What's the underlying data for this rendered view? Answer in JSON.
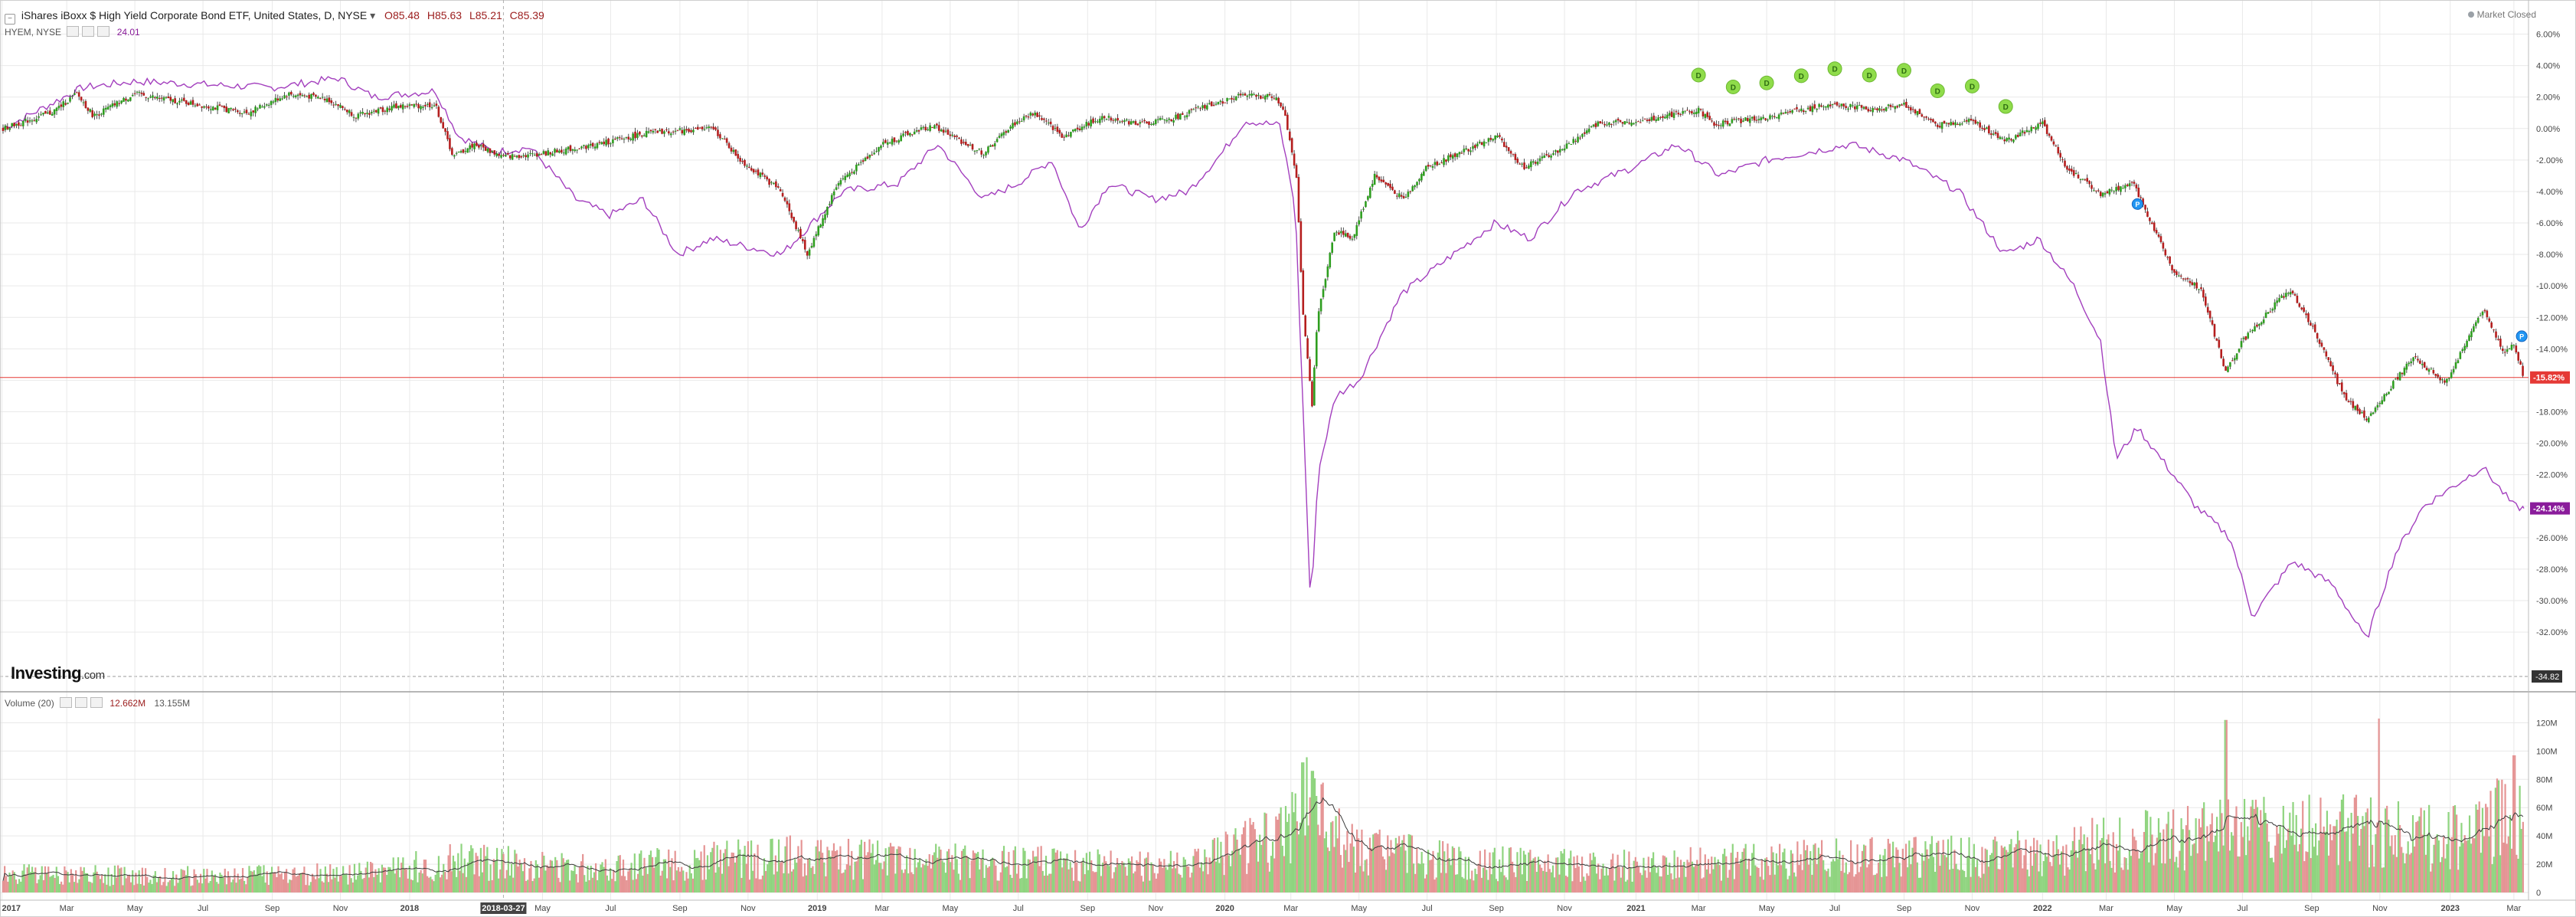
{
  "header": {
    "title": "iShares iBoxx $ High Yield Corporate Bond ETF, United States, D, NYSE",
    "ohlc": {
      "open_label": "O",
      "open": "85.48",
      "high_label": "H",
      "high": "85.63",
      "low_label": "L",
      "low": "85.21",
      "close_label": "C",
      "close": "85.39"
    },
    "compare_symbol": "HYEM, NYSE",
    "compare_value": "24.01",
    "market_status": "Market Closed"
  },
  "volume_header": {
    "label": "Volume (20)",
    "value1": "12.662M",
    "value2": "13.155M"
  },
  "logo": {
    "name": "Investing",
    "domain": ".com"
  },
  "cursor": {
    "date_label": "2018-03-27"
  },
  "colors": {
    "up": "#2e9e1f",
    "down": "#b51e1e",
    "wick": "#222222",
    "compare": "#a33fbe",
    "vol_up": "#8fd47f",
    "vol_down": "#e59494",
    "vol_ma": "#3b3b3b",
    "grid": "#e9e9e9",
    "last_price_line": "#e53935",
    "dividend": "#8fdc4a",
    "event": "#2196f3"
  },
  "chart_data": [
    {
      "type": "line",
      "subtype": "candlestick-percent",
      "x_start": "2017-01-03",
      "x_end": "2023-03-10",
      "ylim": [
        -34.82,
        7
      ],
      "y_ticks": [
        "6.00%",
        "4.00%",
        "2.00%",
        "0.00%",
        "-2.00%",
        "-4.00%",
        "-6.00%",
        "-8.00%",
        "-10.00%",
        "-12.00%",
        "-14.00%",
        "-16.00%",
        "-18.00%",
        "-20.00%",
        "-22.00%",
        "-24.00%",
        "-26.00%",
        "-28.00%",
        "-30.00%",
        "-32.00%"
      ],
      "x_tick_labels": [
        {
          "date": "2017-01-02",
          "label": "2017",
          "year": true
        },
        {
          "date": "2017-03-01",
          "label": "Mar"
        },
        {
          "date": "2017-05-01",
          "label": "May"
        },
        {
          "date": "2017-07-01",
          "label": "Jul"
        },
        {
          "date": "2017-09-01",
          "label": "Sep"
        },
        {
          "date": "2017-11-01",
          "label": "Nov"
        },
        {
          "date": "2018-01-02",
          "label": "2018",
          "year": true
        },
        {
          "date": "2018-05-01",
          "label": "May"
        },
        {
          "date": "2018-07-01",
          "label": "Jul"
        },
        {
          "date": "2018-09-01",
          "label": "Sep"
        },
        {
          "date": "2018-11-01",
          "label": "Nov"
        },
        {
          "date": "2019-01-02",
          "label": "2019",
          "year": true
        },
        {
          "date": "2019-03-01",
          "label": "Mar"
        },
        {
          "date": "2019-05-01",
          "label": "May"
        },
        {
          "date": "2019-07-01",
          "label": "Jul"
        },
        {
          "date": "2019-09-01",
          "label": "Sep"
        },
        {
          "date": "2019-11-01",
          "label": "Nov"
        },
        {
          "date": "2020-01-02",
          "label": "2020",
          "year": true
        },
        {
          "date": "2020-03-01",
          "label": "Mar"
        },
        {
          "date": "2020-05-01",
          "label": "May"
        },
        {
          "date": "2020-07-01",
          "label": "Jul"
        },
        {
          "date": "2020-09-01",
          "label": "Sep"
        },
        {
          "date": "2020-11-01",
          "label": "Nov"
        },
        {
          "date": "2021-01-04",
          "label": "2021",
          "year": true
        },
        {
          "date": "2021-03-01",
          "label": "Mar"
        },
        {
          "date": "2021-05-01",
          "label": "May"
        },
        {
          "date": "2021-07-01",
          "label": "Jul"
        },
        {
          "date": "2021-09-01",
          "label": "Sep"
        },
        {
          "date": "2021-11-01",
          "label": "Nov"
        },
        {
          "date": "2022-01-03",
          "label": "2022",
          "year": true
        },
        {
          "date": "2022-03-01",
          "label": "Mar"
        },
        {
          "date": "2022-05-01",
          "label": "May"
        },
        {
          "date": "2022-07-01",
          "label": "Jul"
        },
        {
          "date": "2022-09-01",
          "label": "Sep"
        },
        {
          "date": "2022-11-01",
          "label": "Nov"
        },
        {
          "date": "2023-01-03",
          "label": "2023",
          "year": true
        },
        {
          "date": "2023-03-01",
          "label": "Mar"
        }
      ],
      "price_series_anchors": [
        [
          "2017-01-03",
          0.0
        ],
        [
          "2017-02-15",
          1.0
        ],
        [
          "2017-03-10",
          2.2
        ],
        [
          "2017-03-25",
          0.8
        ],
        [
          "2017-05-01",
          2.2
        ],
        [
          "2017-06-20",
          1.6
        ],
        [
          "2017-08-10",
          1.0
        ],
        [
          "2017-09-15",
          2.2
        ],
        [
          "2017-10-20",
          1.9
        ],
        [
          "2017-11-15",
          0.8
        ],
        [
          "2017-12-20",
          1.4
        ],
        [
          "2018-01-25",
          1.5
        ],
        [
          "2018-02-10",
          -1.8
        ],
        [
          "2018-03-01",
          -1.0
        ],
        [
          "2018-03-27",
          -1.8
        ],
        [
          "2018-05-01",
          -1.6
        ],
        [
          "2018-06-20",
          -1.0
        ],
        [
          "2018-08-01",
          -0.3
        ],
        [
          "2018-10-01",
          0.0
        ],
        [
          "2018-10-25",
          -2.0
        ],
        [
          "2018-12-01",
          -4.0
        ],
        [
          "2018-12-24",
          -8.0
        ],
        [
          "2019-01-20",
          -3.5
        ],
        [
          "2019-03-01",
          -1.0
        ],
        [
          "2019-04-15",
          0.2
        ],
        [
          "2019-05-31",
          -1.6
        ],
        [
          "2019-06-25",
          0.2
        ],
        [
          "2019-07-15",
          1.0
        ],
        [
          "2019-08-10",
          -0.5
        ],
        [
          "2019-09-15",
          0.8
        ],
        [
          "2019-10-15",
          0.3
        ],
        [
          "2019-11-15",
          0.6
        ],
        [
          "2019-12-20",
          1.5
        ],
        [
          "2020-01-15",
          2.1
        ],
        [
          "2020-02-15",
          2.0
        ],
        [
          "2020-02-24",
          1.2
        ],
        [
          "2020-03-06",
          -3.0
        ],
        [
          "2020-03-12",
          -12.0
        ],
        [
          "2020-03-20",
          -17.5
        ],
        [
          "2020-03-25",
          -12.0
        ],
        [
          "2020-04-09",
          -6.5
        ],
        [
          "2020-04-25",
          -7.0
        ],
        [
          "2020-05-15",
          -3.0
        ],
        [
          "2020-06-10",
          -4.5
        ],
        [
          "2020-06-30",
          -2.5
        ],
        [
          "2020-08-01",
          -1.5
        ],
        [
          "2020-09-02",
          -0.5
        ],
        [
          "2020-09-25",
          -2.5
        ],
        [
          "2020-10-30",
          -1.3
        ],
        [
          "2020-12-01",
          0.3
        ],
        [
          "2021-01-15",
          0.6
        ],
        [
          "2021-03-01",
          1.2
        ],
        [
          "2021-03-15",
          0.3
        ],
        [
          "2021-05-01",
          0.7
        ],
        [
          "2021-07-01",
          1.6
        ],
        [
          "2021-08-01",
          1.2
        ],
        [
          "2021-09-01",
          1.5
        ],
        [
          "2021-10-01",
          0.2
        ],
        [
          "2021-11-01",
          0.5
        ],
        [
          "2021-12-01",
          -0.8
        ],
        [
          "2022-01-03",
          0.3
        ],
        [
          "2022-01-25",
          -2.5
        ],
        [
          "2022-02-24",
          -4.2
        ],
        [
          "2022-03-25",
          -3.5
        ],
        [
          "2022-04-30",
          -9.0
        ],
        [
          "2022-05-25",
          -10.2
        ],
        [
          "2022-06-16",
          -15.5
        ],
        [
          "2022-07-01",
          -13.5
        ],
        [
          "2022-08-12",
          -10.2
        ],
        [
          "2022-09-01",
          -12.5
        ],
        [
          "2022-09-30",
          -17.0
        ],
        [
          "2022-10-20",
          -18.5
        ],
        [
          "2022-11-15",
          -16.0
        ],
        [
          "2022-12-01",
          -14.5
        ],
        [
          "2022-12-30",
          -16.2
        ],
        [
          "2023-02-01",
          -11.5
        ],
        [
          "2023-02-20",
          -14.2
        ],
        [
          "2023-03-01",
          -13.8
        ],
        [
          "2023-03-10",
          -15.82
        ]
      ],
      "compare_series_anchors": [
        [
          "2017-01-03",
          0.0
        ],
        [
          "2017-03-15",
          2.6
        ],
        [
          "2017-05-01",
          3.0
        ],
        [
          "2017-07-01",
          2.8
        ],
        [
          "2017-09-01",
          2.6
        ],
        [
          "2017-10-30",
          3.2
        ],
        [
          "2017-12-01",
          2.0
        ],
        [
          "2018-01-25",
          2.4
        ],
        [
          "2018-02-15",
          -0.5
        ],
        [
          "2018-03-20",
          -1.5
        ],
        [
          "2018-04-20",
          -1.2
        ],
        [
          "2018-05-31",
          -4.5
        ],
        [
          "2018-06-30",
          -5.5
        ],
        [
          "2018-07-30",
          -4.5
        ],
        [
          "2018-08-30",
          -8.0
        ],
        [
          "2018-09-30",
          -7.0
        ],
        [
          "2018-10-30",
          -7.5
        ],
        [
          "2018-12-01",
          -8.0
        ],
        [
          "2019-01-25",
          -4.0
        ],
        [
          "2019-03-15",
          -3.5
        ],
        [
          "2019-04-20",
          -1.0
        ],
        [
          "2019-05-31",
          -4.5
        ],
        [
          "2019-06-30",
          -3.5
        ],
        [
          "2019-07-31",
          -2.0
        ],
        [
          "2019-08-25",
          -6.5
        ],
        [
          "2019-09-20",
          -3.5
        ],
        [
          "2019-10-30",
          -4.5
        ],
        [
          "2019-11-30",
          -4.0
        ],
        [
          "2019-12-31",
          -1.5
        ],
        [
          "2020-01-20",
          0.5
        ],
        [
          "2020-02-20",
          0.2
        ],
        [
          "2020-03-05",
          -5.0
        ],
        [
          "2020-03-19",
          -31.0
        ],
        [
          "2020-03-25",
          -22.0
        ],
        [
          "2020-04-10",
          -17.0
        ],
        [
          "2020-05-01",
          -16.0
        ],
        [
          "2020-06-08",
          -10.5
        ],
        [
          "2020-07-15",
          -8.5
        ],
        [
          "2020-08-31",
          -6.0
        ],
        [
          "2020-10-01",
          -7.0
        ],
        [
          "2020-11-10",
          -4.0
        ],
        [
          "2020-12-31",
          -2.5
        ],
        [
          "2021-02-10",
          -1.0
        ],
        [
          "2021-03-20",
          -3.0
        ],
        [
          "2021-05-01",
          -2.0
        ],
        [
          "2021-07-15",
          -1.0
        ],
        [
          "2021-09-01",
          -2.0
        ],
        [
          "2021-10-20",
          -4.0
        ],
        [
          "2021-11-30",
          -8.0
        ],
        [
          "2021-12-31",
          -7.0
        ],
        [
          "2022-01-31",
          -10.0
        ],
        [
          "2022-02-24",
          -13.5
        ],
        [
          "2022-03-10",
          -21.0
        ],
        [
          "2022-03-29",
          -19.0
        ],
        [
          "2022-04-30",
          -22.0
        ],
        [
          "2022-05-20",
          -24.0
        ],
        [
          "2022-06-20",
          -26.0
        ],
        [
          "2022-07-10",
          -31.0
        ],
        [
          "2022-08-15",
          -27.5
        ],
        [
          "2022-09-20",
          -29.0
        ],
        [
          "2022-10-20",
          -32.5
        ],
        [
          "2022-11-15",
          -27.0
        ],
        [
          "2022-12-10",
          -24.0
        ],
        [
          "2023-02-01",
          -21.5
        ],
        [
          "2023-03-01",
          -24.0
        ],
        [
          "2023-03-10",
          -24.14
        ]
      ],
      "dividend_markers": [
        "2021-03-01",
        "2021-04-01",
        "2021-05-01",
        "2021-06-01",
        "2021-07-01",
        "2021-08-01",
        "2021-09-01",
        "2021-10-01",
        "2021-11-01",
        "2021-12-01"
      ],
      "dividend_label": "D",
      "event_markers": [
        {
          "date": "2022-03-29",
          "value": -4.8
        },
        {
          "date": "2023-03-08",
          "value": -13.2
        }
      ],
      "event_label": "P",
      "last_values": [
        {
          "series": "iShares iBoxx $ High Yield Corporate Bond ETF",
          "value": -15.82,
          "label": "-15.82%"
        },
        {
          "series": "HYEM, NYSE",
          "value": -24.14,
          "label": "-24.14%"
        }
      ],
      "axis_min_label": "-34.82"
    },
    {
      "type": "bar",
      "subtype": "volume",
      "ylim": [
        0,
        130
      ],
      "y_unit": "M",
      "y_ticks": [
        "120M",
        "100M",
        "80M",
        "60M",
        "40M",
        "20M",
        "0"
      ],
      "volume_anchors": [
        [
          "2017-01-03",
          12
        ],
        [
          "2017-06-01",
          11
        ],
        [
          "2017-12-01",
          13
        ],
        [
          "2018-02-10",
          22
        ],
        [
          "2018-06-01",
          16
        ],
        [
          "2018-12-01",
          24
        ],
        [
          "2019-06-01",
          20
        ],
        [
          "2019-12-01",
          18
        ],
        [
          "2020-02-25",
          40
        ],
        [
          "2020-03-15",
          60
        ],
        [
          "2020-04-20",
          30
        ],
        [
          "2020-08-01",
          20
        ],
        [
          "2021-01-01",
          18
        ],
        [
          "2021-06-01",
          22
        ],
        [
          "2021-12-01",
          25
        ],
        [
          "2022-03-01",
          32
        ],
        [
          "2022-06-20",
          40
        ],
        [
          "2022-10-20",
          42
        ],
        [
          "2023-01-01",
          35
        ],
        [
          "2023-03-10",
          55
        ]
      ],
      "spikes": [
        {
          "date": "2020-03-12",
          "value": 92
        },
        {
          "date": "2020-03-20",
          "value": 86
        },
        {
          "date": "2022-06-16",
          "value": 122
        },
        {
          "date": "2022-10-31",
          "value": 123
        },
        {
          "date": "2023-03-01",
          "value": 97
        }
      ]
    }
  ]
}
